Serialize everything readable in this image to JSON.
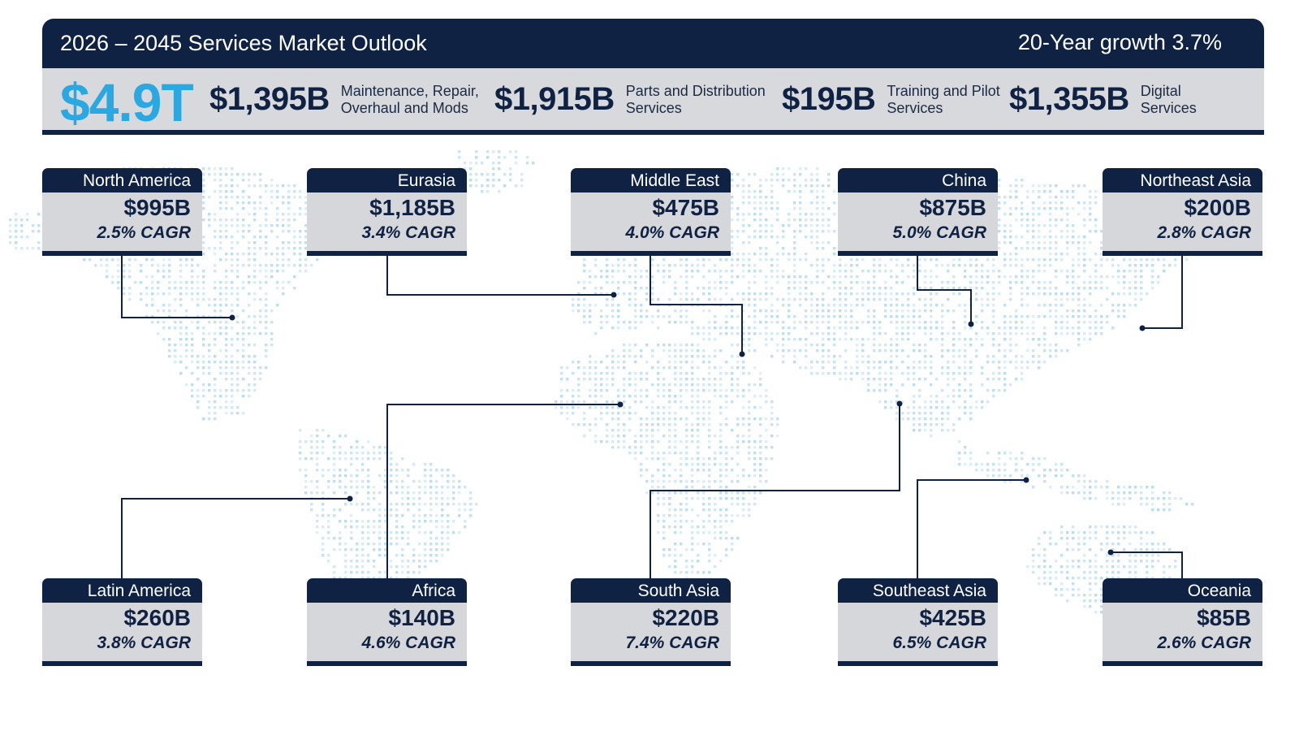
{
  "header": {
    "title": "2026 – 2045 Services Market Outlook",
    "growth": "20-Year growth 3.7%"
  },
  "summary": {
    "total": "$4.9T",
    "segments": [
      {
        "amount": "$1,395B",
        "label": "Maintenance, Repair,\nOverhaul and Mods"
      },
      {
        "amount": "$1,915B",
        "label": "Parts and Distribution\nServices"
      },
      {
        "amount": "$195B",
        "label": "Training and Pilot\nServices"
      },
      {
        "amount": "$1,355B",
        "label": "Digital\nServices"
      }
    ]
  },
  "colors": {
    "navy": "#0f2244",
    "accent_blue": "#2aa8e2",
    "panel_gray": "#d8d9dc",
    "map_dots": "#b9dcee"
  },
  "chart_data": {
    "type": "table",
    "title": "2026 – 2045 Services Market Outlook",
    "total": "$4.9T",
    "regions": [
      {
        "name": "North America",
        "value": "$995B",
        "cagr": "2.5% CAGR"
      },
      {
        "name": "Eurasia",
        "value": "$1,185B",
        "cagr": "3.4% CAGR"
      },
      {
        "name": "Middle East",
        "value": "$475B",
        "cagr": "4.0% CAGR"
      },
      {
        "name": "China",
        "value": "$875B",
        "cagr": "5.0% CAGR"
      },
      {
        "name": "Northeast Asia",
        "value": "$200B",
        "cagr": "2.8% CAGR"
      },
      {
        "name": "Latin America",
        "value": "$260B",
        "cagr": "3.8% CAGR"
      },
      {
        "name": "Africa",
        "value": "$140B",
        "cagr": "4.6% CAGR"
      },
      {
        "name": "South Asia",
        "value": "$220B",
        "cagr": "7.4% CAGR"
      },
      {
        "name": "Southeast Asia",
        "value": "$425B",
        "cagr": "6.5% CAGR"
      },
      {
        "name": "Oceania",
        "value": "$85B",
        "cagr": "2.6% CAGR"
      }
    ]
  }
}
